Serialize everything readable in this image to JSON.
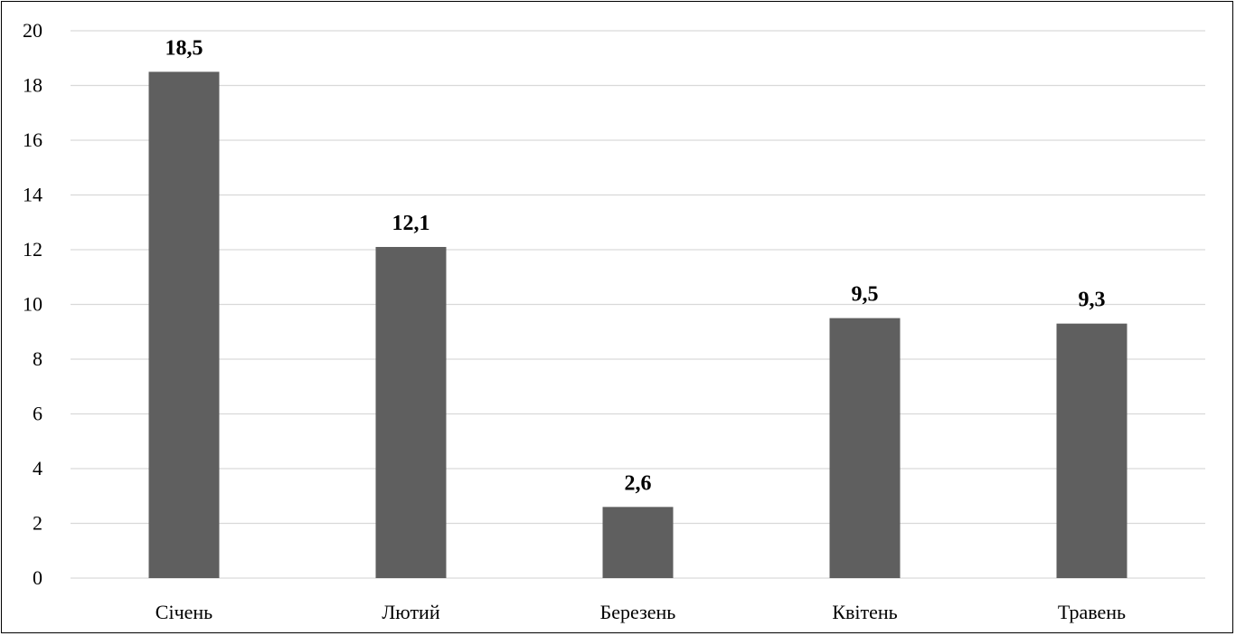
{
  "chart_data": {
    "type": "bar",
    "categories": [
      "Січень",
      "Лютий",
      "Березень",
      "Квітень",
      "Травень"
    ],
    "values": [
      18.5,
      12.1,
      2.6,
      9.5,
      9.3
    ],
    "data_labels": [
      "18,5",
      "12,1",
      "2,6",
      "9,5",
      "9,3"
    ],
    "title": "",
    "xlabel": "",
    "ylabel": "",
    "ylim": [
      0,
      20
    ],
    "yticks": [
      0,
      2,
      4,
      6,
      8,
      10,
      12,
      14,
      16,
      18,
      20
    ],
    "grid": true,
    "legend": "none",
    "bar_color": "#5f5f5f",
    "grid_color": "#d9d9d9"
  }
}
